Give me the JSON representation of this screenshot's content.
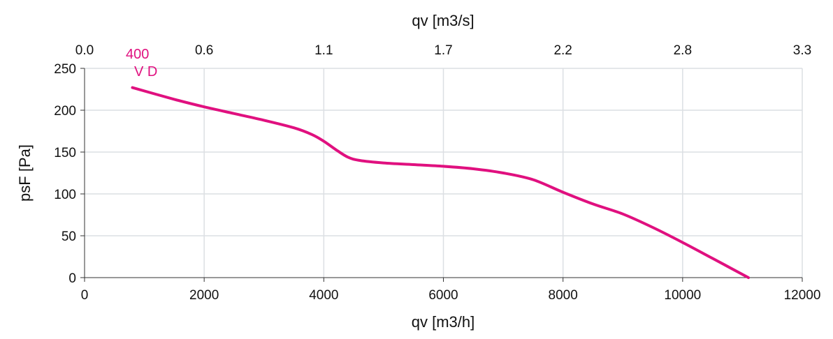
{
  "chart_data": {
    "type": "line",
    "title": "",
    "xlabel": "qv [m3/h]",
    "x2label": "qv [m3/s]",
    "ylabel": "psF [Pa]",
    "xlim": [
      0,
      12000
    ],
    "ylim": [
      0,
      250
    ],
    "x2lim": [
      0,
      3.3
    ],
    "xticks": [
      "0",
      "2000",
      "4000",
      "6000",
      "8000",
      "10000",
      "12000"
    ],
    "x2ticks": [
      "0.0",
      "0.6",
      "1.1",
      "1.7",
      "2.2",
      "2.8",
      "3.3"
    ],
    "yticks": [
      "0",
      "50",
      "100",
      "150",
      "200",
      "250"
    ],
    "grid": true,
    "colors": {
      "series": "#e0107f",
      "grid": "#dcdfe3",
      "axis": "#333333"
    },
    "series": [
      {
        "label_line1": "400",
        "label_line2": "V D",
        "color": "#e0107f",
        "x": [
          800,
          1500,
          2000,
          2500,
          3000,
          3500,
          3800,
          4000,
          4200,
          4400,
          4600,
          5000,
          5500,
          6000,
          6500,
          7000,
          7500,
          8000,
          8500,
          9000,
          9500,
          10000,
          10500,
          11100
        ],
        "y": [
          227,
          213,
          204,
          196,
          188,
          179,
          171,
          163,
          153,
          144,
          140,
          137,
          135,
          133,
          130,
          125,
          117,
          102,
          88,
          76,
          60,
          42,
          23,
          0
        ]
      }
    ]
  }
}
